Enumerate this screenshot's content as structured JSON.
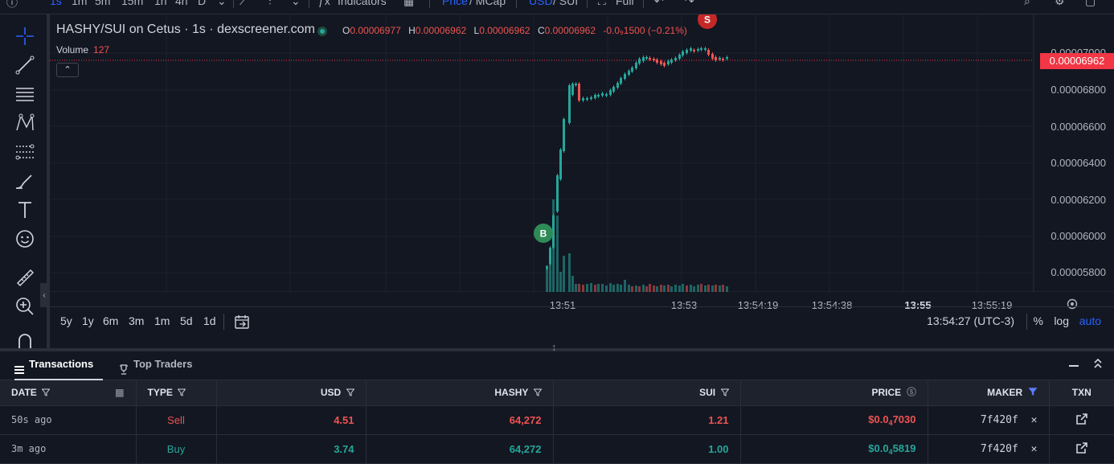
{
  "topbar": {
    "intervals": [
      "1s",
      "1m",
      "5m",
      "15m",
      "1h",
      "4h",
      "D"
    ],
    "indicators_label": "Indicators",
    "price_label": "Price",
    "mcap_label": "MCap",
    "usd_label": "USD",
    "sui_label": "SUI",
    "full_label": "Full"
  },
  "chart": {
    "title": "HASHY/SUI on Cetus · 1s · dexscreener.com",
    "ohlc": {
      "o_key": "O",
      "o_val": "0.00006977",
      "h_key": "H",
      "h_val": "0.00006962",
      "l_key": "L",
      "l_val": "0.00006962",
      "c_key": "C",
      "c_val": "0.00006962",
      "change": "-0.0₉1500 (−0.21%)"
    },
    "volume_label": "Volume",
    "volume_value": "127",
    "current_price": "0.00006962",
    "price_ticks": [
      "0.00007000",
      "0.00006800",
      "0.00006600",
      "0.00006400",
      "0.00006200",
      "0.00006000",
      "0.00005800"
    ],
    "time_ticks": [
      {
        "label": "13:51",
        "bold": false
      },
      {
        "label": "13:53",
        "bold": false
      },
      {
        "label": "13:54:19",
        "bold": false
      },
      {
        "label": "13:54:38",
        "bold": false
      },
      {
        "label": "13:55",
        "bold": true
      },
      {
        "label": "13:55:19",
        "bold": false
      }
    ],
    "markers": {
      "buy": "B",
      "sell": "S"
    },
    "colors": {
      "up": "#26a69a",
      "down": "#ef5350",
      "accent": "#2962ff"
    }
  },
  "bottombar": {
    "ranges": [
      "5y",
      "1y",
      "6m",
      "3m",
      "1m",
      "5d",
      "1d"
    ],
    "timezone": "13:54:27 (UTC-3)",
    "percent": "%",
    "log": "log",
    "auto": "auto"
  },
  "tabs": {
    "transactions": "Transactions",
    "top_traders": "Top Traders"
  },
  "table": {
    "headers": {
      "date": "DATE",
      "type": "TYPE",
      "usd": "USD",
      "hashy": "HASHY",
      "sui": "SUI",
      "price": "PRICE",
      "maker": "MAKER",
      "txn": "TXN"
    },
    "rows": [
      {
        "date": "50s ago",
        "type": "Sell",
        "usd": "4.51",
        "hashy": "64,272",
        "sui": "1.21",
        "price_a": "$0.0",
        "price_sub": "4",
        "price_b": "7030",
        "maker": "7f420f"
      },
      {
        "date": "3m ago",
        "type": "Buy",
        "usd": "3.74",
        "hashy": "64,272",
        "sui": "1.00",
        "price_a": "$0.0",
        "price_sub": "4",
        "price_b": "5819",
        "maker": "7f420f"
      }
    ]
  }
}
